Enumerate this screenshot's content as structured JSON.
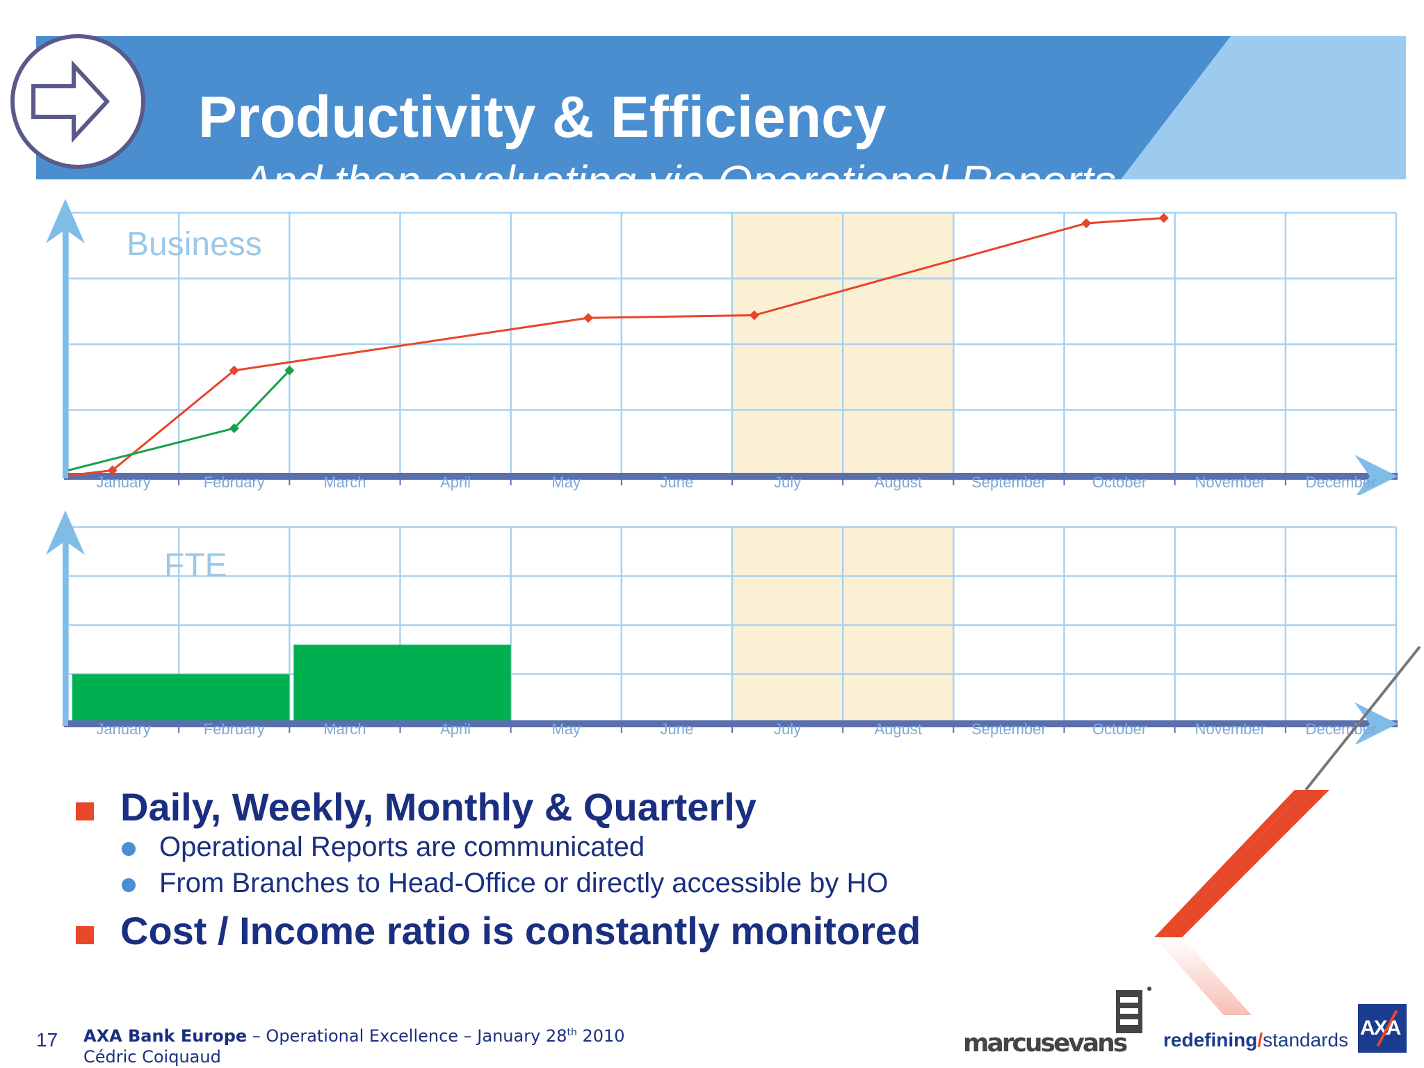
{
  "header": {
    "title": "Productivity & Efficiency",
    "subtitle": "…And then evaluating via Operational Reports",
    "colors": {
      "band_dark": "#4a8ecf",
      "band_light": "#9dcbef"
    },
    "icon": "arrow-right-icon"
  },
  "charts": [
    {
      "id": "business",
      "label": "Business",
      "chart_data": {
        "type": "line",
        "title": "Business",
        "x": [
          "January",
          "February",
          "March",
          "April",
          "May",
          "June",
          "July",
          "August",
          "September",
          "October",
          "November",
          "December"
        ],
        "highlight_months": [
          "July",
          "August"
        ],
        "series": [
          {
            "color": "#e8442a",
            "points": [
              [
                0.0,
                0.0
              ],
              [
                0.4,
                0.02
              ],
              [
                1.5,
                0.4
              ],
              [
                4.7,
                0.6
              ],
              [
                6.2,
                0.61
              ],
              [
                9.2,
                0.96
              ],
              [
                9.9,
                0.98
              ]
            ]
          },
          {
            "color": "#14a24a",
            "points": [
              [
                0.0,
                0.02
              ],
              [
                1.5,
                0.18
              ],
              [
                2.0,
                0.4
              ]
            ]
          }
        ],
        "ylim": [
          0,
          1
        ],
        "grid": true
      }
    },
    {
      "id": "fte",
      "label": "FTE",
      "chart_data": {
        "type": "bar",
        "title": "FTE",
        "x": [
          "January",
          "February",
          "March",
          "April",
          "May",
          "June",
          "July",
          "August",
          "September",
          "October",
          "November",
          "December"
        ],
        "highlight_months": [
          "July",
          "August"
        ],
        "bars": [
          {
            "from_month": 0.0,
            "to_month": 2.0,
            "value": 0.25
          },
          {
            "from_month": 2.0,
            "to_month": 4.0,
            "value": 0.4
          }
        ],
        "bar_color": "#00b050",
        "ylim": [
          0,
          1
        ],
        "grid": true
      }
    }
  ],
  "bullets": [
    {
      "text": "Daily, Weekly, Monthly & Quarterly",
      "sub": [
        "Operational Reports are communicated",
        "From Branches to Head-Office or directly accessible by HO"
      ]
    },
    {
      "text": "Cost / Income ratio is constantly monitored",
      "sub": []
    }
  ],
  "footer": {
    "page_number": "17",
    "org": "AXA Bank Europe",
    "event": " – Operational Excellence – January 28",
    "date_suffix": "th",
    "year": " 2010",
    "author": "Cédric Coiquaud",
    "logo_marcus": "marcusevans",
    "tagline_1": "redefining",
    "tagline_slash": "/",
    "tagline_2": "standards",
    "logo_axa": "AXA"
  }
}
